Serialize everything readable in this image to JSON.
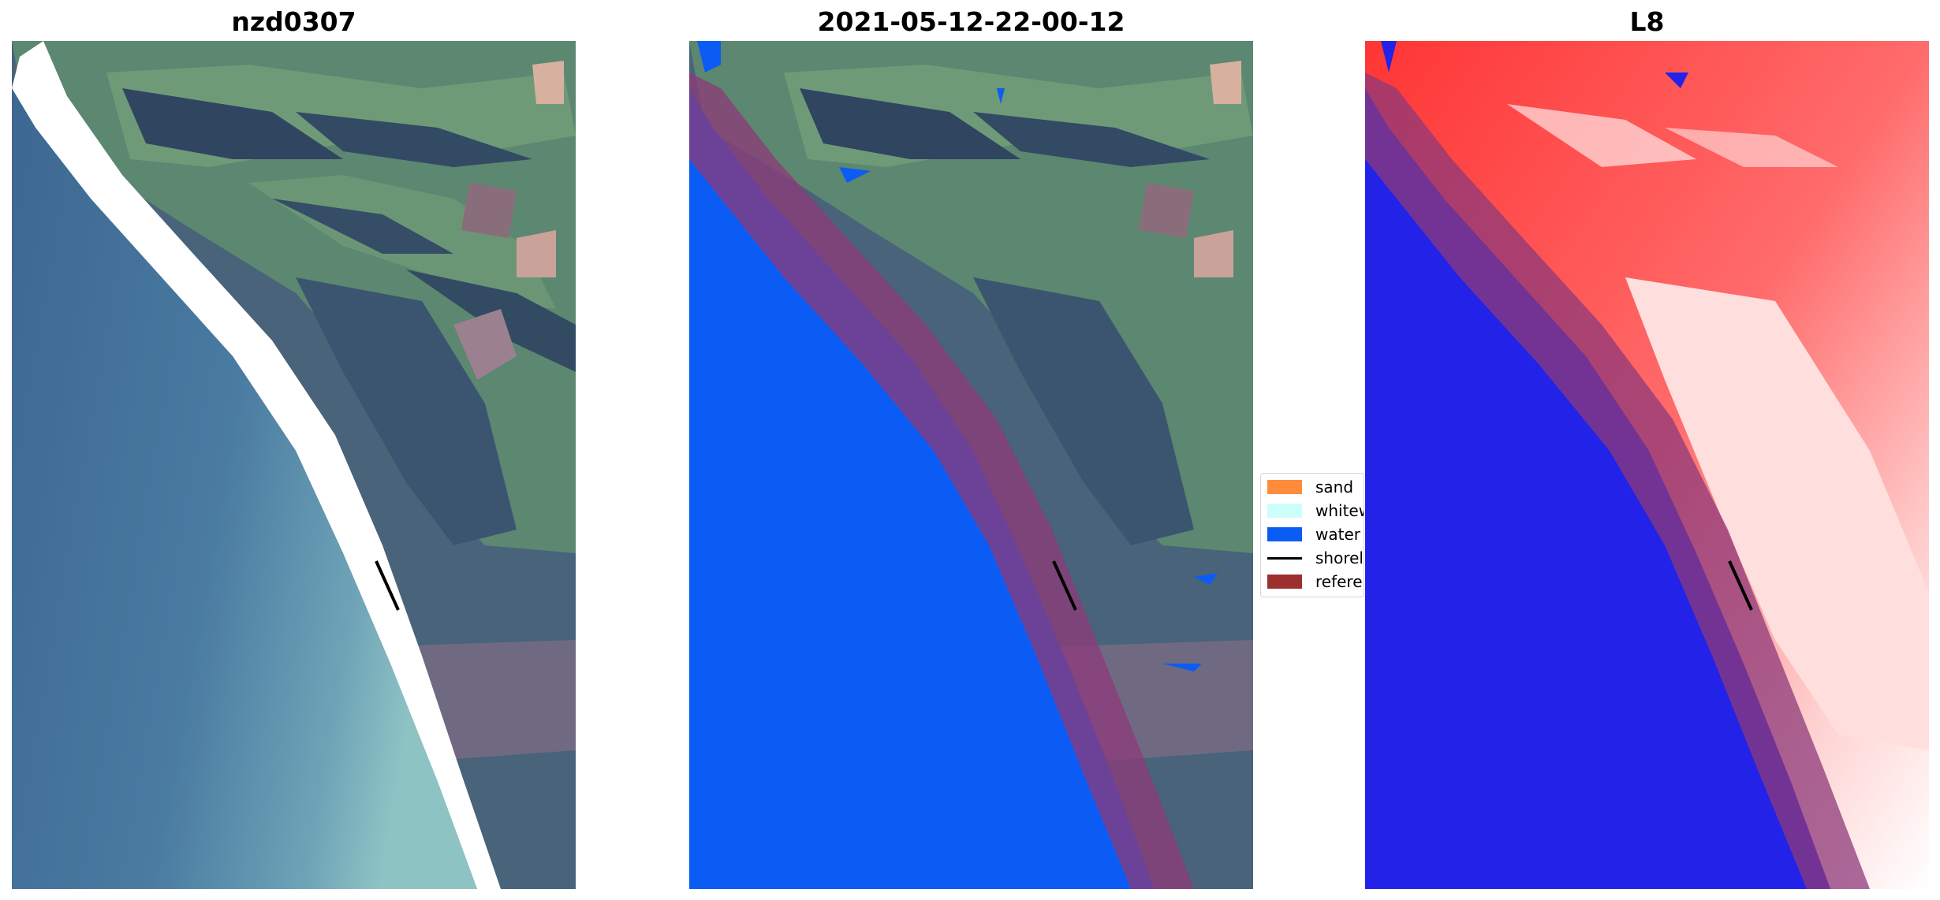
{
  "panels": [
    {
      "title": "nzd0307"
    },
    {
      "title": "2021-05-12-22-00-12"
    },
    {
      "title": "L8"
    }
  ],
  "legend": {
    "items": [
      {
        "label": "sand",
        "color": "#ff8c3a",
        "kind": "patch"
      },
      {
        "label": "whitewater",
        "color": "#ccfffb",
        "kind": "patch"
      },
      {
        "label": "water",
        "color": "#0a5cf5",
        "kind": "patch"
      },
      {
        "label": "shoreline",
        "color": "#000000",
        "kind": "line"
      },
      {
        "label": "reference shoreline buffer",
        "color": "#9e2f2f",
        "kind": "patch"
      }
    ]
  },
  "colors": {
    "sea_rgb": "#3f6d95",
    "land_forest": "#48627a",
    "land_pasture": "#5f8b72",
    "water_class": "#0a5cf5",
    "buffer": "#8d3a7a",
    "index_low": "#2222e8",
    "index_high": "#ff3535"
  }
}
